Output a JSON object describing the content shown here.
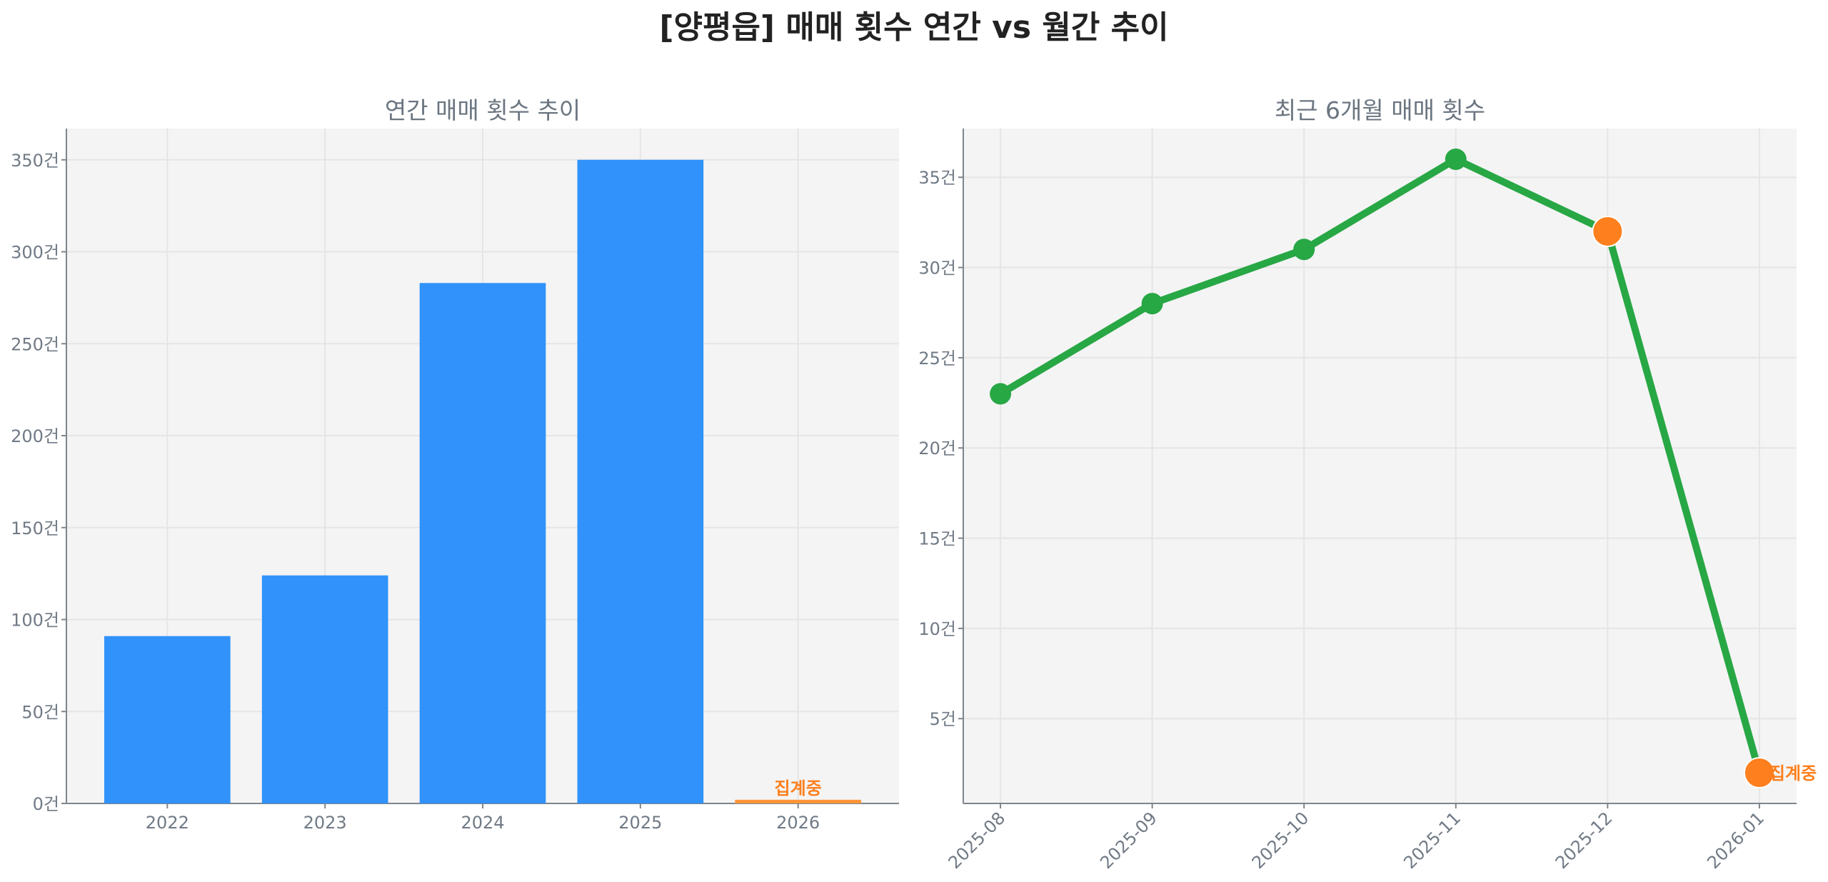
{
  "title": "[양평읍] 매매 횟수 연간 vs 월간 추이",
  "chart_data": [
    {
      "type": "bar",
      "title": "연간 매매 횟수 추이",
      "categories": [
        "2022",
        "2023",
        "2024",
        "2025",
        "2026"
      ],
      "values": [
        91,
        124,
        283,
        350,
        2
      ],
      "bar_colors": [
        "#3092fa",
        "#3092fa",
        "#3092fa",
        "#3092fa",
        "#ff9538"
      ],
      "annotations": [
        {
          "category": "2026",
          "text": "집계중",
          "color": "#fd7f1d"
        }
      ],
      "ylim": [
        0,
        367
      ],
      "yticks": [
        0,
        50,
        100,
        150,
        200,
        250,
        300,
        350
      ],
      "ytick_suffix": "건",
      "grid": true
    },
    {
      "type": "line",
      "title": "최근 6개월 매매 횟수",
      "x": [
        "2025-08",
        "2025-09",
        "2025-10",
        "2025-11",
        "2025-12",
        "2026-01"
      ],
      "values": [
        23,
        28,
        31,
        36,
        32,
        2
      ],
      "line_color": "#28a745",
      "highlight_points": [
        {
          "x": "2025-12",
          "color": "#fd7f1d"
        },
        {
          "x": "2026-01",
          "color": "#fd7f1d"
        }
      ],
      "annotations": [
        {
          "x": "2026-01",
          "text": "집계중",
          "color": "#fd7f1d"
        }
      ],
      "ylim": [
        0.3,
        37.7
      ],
      "yticks": [
        5,
        10,
        15,
        20,
        25,
        30,
        35
      ],
      "ytick_suffix": "건",
      "grid": true
    }
  ]
}
